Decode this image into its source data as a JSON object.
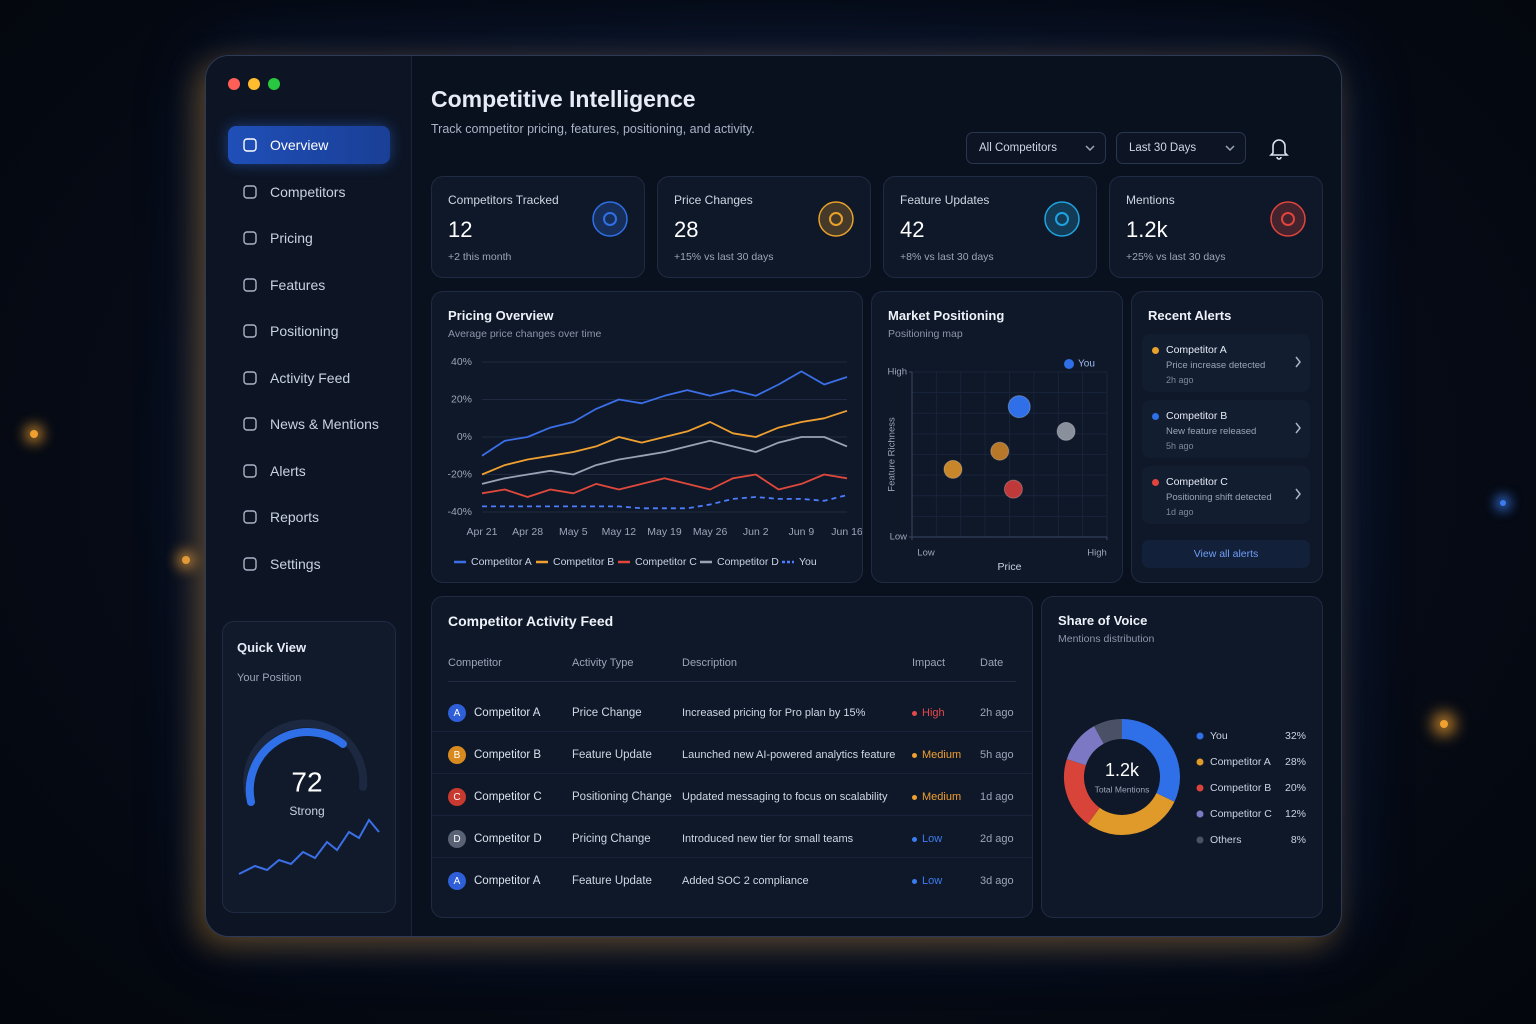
{
  "sidebar": {
    "nav": [
      "Overview",
      "Competitors",
      "Pricing",
      "Features",
      "Positioning",
      "Activity Feed",
      "News & Mentions",
      "Alerts",
      "Reports",
      "Settings"
    ],
    "quick_view": {
      "title": "Quick View",
      "label": "Your Position",
      "score": 72,
      "rating": "Strong"
    }
  },
  "header": {
    "title": "Competitive Intelligence",
    "subtitle": "Track competitor pricing, features, positioning, and activity.",
    "filters": [
      "All Competitors",
      "Last 30 Days"
    ]
  },
  "kpis": [
    {
      "label": "Competitors Tracked",
      "value": 12,
      "delta": "+2 this month",
      "color": "#2f6fe8"
    },
    {
      "label": "Price Changes",
      "value": 28,
      "delta": "+15% vs last 30 days",
      "color": "#e8a12a"
    },
    {
      "label": "Feature Updates",
      "value": 42,
      "delta": "+8% vs last 30 days",
      "color": "#1fa3e0"
    },
    {
      "label": "Mentions",
      "value": "1.2k",
      "delta": "+25% vs last 30 days",
      "color": "#e0443c"
    }
  ],
  "chart_data": [
    {
      "type": "line",
      "title": "Pricing Overview",
      "subtitle": "Average price changes over time",
      "categories": [
        "Apr 21",
        null,
        "Apr 28",
        null,
        "May 5",
        null,
        "May 12",
        null,
        "May 19",
        null,
        "May 26",
        null,
        "Jun 2",
        null,
        "Jun 9",
        null,
        "Jun 16"
      ],
      "ylim": [
        -40,
        40
      ],
      "yticks": [
        {
          "value": 40,
          "label": "40%"
        },
        {
          "value": 20,
          "label": "20%"
        },
        {
          "value": 0,
          "label": "0%"
        },
        {
          "value": -20,
          "label": "-20%"
        },
        {
          "value": -40,
          "label": "-40%"
        }
      ],
      "grid": true,
      "series": [
        {
          "name": "Competitor A",
          "color": "#3b6fe8",
          "values": [
            -10,
            -2,
            0,
            5,
            8,
            15,
            20,
            18,
            22,
            25,
            22,
            25,
            22,
            28,
            35,
            28,
            32
          ]
        },
        {
          "name": "Competitor B",
          "color": "#f0a030",
          "values": [
            -20,
            -15,
            -12,
            -10,
            -8,
            -5,
            0,
            -3,
            0,
            3,
            8,
            2,
            0,
            5,
            8,
            10,
            14
          ]
        },
        {
          "name": "Competitor C",
          "color": "#e0483c",
          "values": [
            -30,
            -28,
            -32,
            -28,
            -30,
            -25,
            -28,
            -25,
            -22,
            -25,
            -28,
            -22,
            -20,
            -28,
            -25,
            -20,
            -22
          ]
        },
        {
          "name": "Competitor D",
          "color": "#9aa3b5",
          "values": [
            -25,
            -22,
            -20,
            -18,
            -20,
            -15,
            -12,
            -10,
            -8,
            -5,
            -2,
            -5,
            -8,
            -3,
            0,
            0,
            -5
          ]
        },
        {
          "name": "You",
          "color": "#4c7dff",
          "dash": true,
          "values": [
            -37,
            -37,
            -37,
            -37,
            -37,
            -37,
            -37,
            -38,
            -38,
            -38,
            -36,
            -33,
            -32,
            -33,
            -33,
            -34,
            -31
          ]
        }
      ]
    },
    {
      "type": "scatter",
      "title": "Market Positioning",
      "subtitle": "Positioning map",
      "xlabel": "Price",
      "ylabel": "Feature Richness",
      "xlim": [
        0,
        10
      ],
      "ylim": [
        0,
        10
      ],
      "xticks": [
        {
          "value": 0,
          "label": "Low"
        },
        {
          "value": 10,
          "label": "High"
        }
      ],
      "yticks": [
        {
          "value": 0,
          "label": "Low"
        },
        {
          "value": 10,
          "label": "High"
        }
      ],
      "grid": true,
      "legend": "upper right",
      "series": [
        {
          "name": "You",
          "color": "#2f6fe8",
          "x": [
            5.5
          ],
          "y": [
            7.9
          ]
        },
        {
          "color": "#c8862a",
          "x": [
            2.1
          ],
          "y": [
            4.1
          ]
        },
        {
          "color": "#b8782a",
          "x": [
            4.5
          ],
          "y": [
            5.2
          ]
        },
        {
          "color": "#c0393a",
          "x": [
            5.2
          ],
          "y": [
            2.9
          ]
        },
        {
          "color": "#8a8f9c",
          "x": [
            7.9
          ],
          "y": [
            6.4
          ]
        }
      ]
    },
    {
      "type": "donut",
      "title": "Share of Voice",
      "subtitle": "Mentions distribution",
      "center_value": "1.2k",
      "center_label": "Total Mentions",
      "categories": [
        "You",
        "Competitor A",
        "Competitor B",
        "Competitor C",
        "Others"
      ],
      "values": [
        32,
        28,
        20,
        12,
        8
      ],
      "value_labels": [
        "32%",
        "28%",
        "20%",
        "12%",
        "8%"
      ],
      "colors": [
        "#2f6fe8",
        "#e09a2a",
        "#d9443a",
        "#7c78c4",
        "#4a5166"
      ]
    }
  ],
  "alerts": {
    "title": "Recent Alerts",
    "items": [
      {
        "competitor": "Competitor A",
        "text": "Price increase detected",
        "time": "2h ago",
        "color": "#e8a12a"
      },
      {
        "competitor": "Competitor B",
        "text": "New feature released",
        "time": "5h ago",
        "color": "#2f6fe8"
      },
      {
        "competitor": "Competitor C",
        "text": "Positioning shift detected",
        "time": "1d ago",
        "color": "#e0443c"
      }
    ],
    "action": "View all alerts"
  },
  "activity_feed": {
    "title": "Competitor Activity Feed",
    "columns": [
      "Competitor",
      "Activity Type",
      "Description",
      "Impact",
      "Date"
    ],
    "rows": [
      {
        "avatar": "A",
        "avatar_color": "#2f5fd8",
        "competitor": "Competitor A",
        "activity_type": "Price Change",
        "description": "Increased pricing for Pro plan by 15%",
        "impact": "High",
        "impact_color": "#e5484d",
        "date": "2h ago"
      },
      {
        "avatar": "B",
        "avatar_color": "#d98a1f",
        "competitor": "Competitor B",
        "activity_type": "Feature Update",
        "description": "Launched new AI-powered analytics feature",
        "impact": "Medium",
        "impact_color": "#f0a030",
        "date": "5h ago"
      },
      {
        "avatar": "C",
        "avatar_color": "#c8392f",
        "competitor": "Competitor C",
        "activity_type": "Positioning Change",
        "description": "Updated messaging to focus on scalability",
        "impact": "Medium",
        "impact_color": "#f0a030",
        "date": "1d ago"
      },
      {
        "avatar": "D",
        "avatar_color": "#5a6275",
        "competitor": "Competitor D",
        "activity_type": "Pricing Change",
        "description": "Introduced new tier for small teams",
        "impact": "Low",
        "impact_color": "#3b7cf0",
        "date": "2d ago"
      },
      {
        "avatar": "A",
        "avatar_color": "#2f5fd8",
        "competitor": "Competitor A",
        "activity_type": "Feature Update",
        "description": "Added SOC 2 compliance",
        "impact": "Low",
        "impact_color": "#3b7cf0",
        "date": "3d ago"
      }
    ]
  }
}
